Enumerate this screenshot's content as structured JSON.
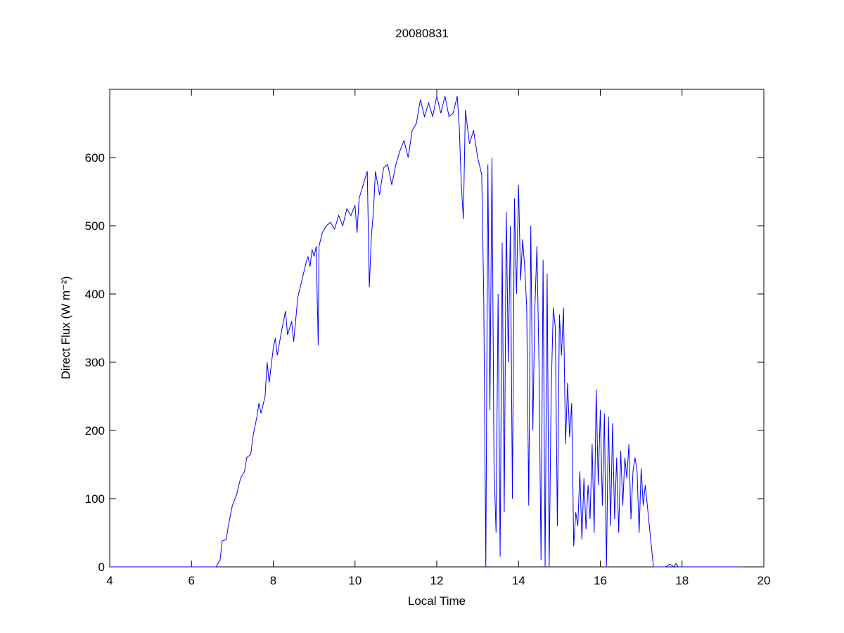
{
  "chart_data": {
    "type": "line",
    "title": "20080831",
    "x_label": "Local Time",
    "y_label": "Direct Flux (W m⁻²)",
    "xlim": [
      4,
      20
    ],
    "xticks": [
      4,
      6,
      8,
      10,
      12,
      14,
      16,
      18,
      20
    ],
    "ylim": [
      0,
      700
    ],
    "yticks": [
      0,
      100,
      200,
      300,
      400,
      500,
      600
    ],
    "grid": false,
    "x": [
      4.0,
      5.5,
      6.6,
      6.65,
      6.7,
      6.75,
      6.85,
      6.9,
      7.0,
      7.1,
      7.2,
      7.3,
      7.35,
      7.45,
      7.5,
      7.6,
      7.65,
      7.7,
      7.8,
      7.85,
      7.9,
      8.0,
      8.05,
      8.1,
      8.2,
      8.3,
      8.35,
      8.45,
      8.5,
      8.6,
      8.7,
      8.8,
      8.85,
      8.9,
      8.95,
      9.0,
      9.05,
      9.1,
      9.12,
      9.2,
      9.3,
      9.4,
      9.5,
      9.6,
      9.7,
      9.8,
      9.9,
      10.0,
      10.05,
      10.1,
      10.2,
      10.3,
      10.35,
      10.4,
      10.45,
      10.5,
      10.6,
      10.7,
      10.8,
      10.9,
      11.0,
      11.1,
      11.2,
      11.3,
      11.4,
      11.5,
      11.6,
      11.7,
      11.8,
      11.9,
      12.0,
      12.1,
      12.2,
      12.3,
      12.4,
      12.5,
      12.55,
      12.6,
      12.65,
      12.7,
      12.8,
      12.9,
      13.0,
      13.1,
      13.15,
      13.2,
      13.25,
      13.3,
      13.35,
      13.4,
      13.45,
      13.5,
      13.55,
      13.6,
      13.65,
      13.7,
      13.75,
      13.8,
      13.85,
      13.9,
      13.95,
      14.0,
      14.05,
      14.1,
      14.15,
      14.2,
      14.25,
      14.3,
      14.35,
      14.4,
      14.45,
      14.5,
      14.55,
      14.6,
      14.65,
      14.7,
      14.75,
      14.8,
      14.85,
      14.9,
      14.95,
      15.0,
      15.05,
      15.1,
      15.15,
      15.2,
      15.25,
      15.3,
      15.35,
      15.4,
      15.45,
      15.5,
      15.55,
      15.6,
      15.65,
      15.7,
      15.75,
      15.8,
      15.85,
      15.9,
      15.95,
      16.0,
      16.05,
      16.1,
      16.15,
      16.2,
      16.25,
      16.3,
      16.35,
      16.4,
      16.45,
      16.5,
      16.55,
      16.6,
      16.65,
      16.7,
      16.75,
      16.8,
      16.85,
      16.9,
      16.95,
      17.0,
      17.05,
      17.1,
      17.2,
      17.3,
      17.6,
      17.7,
      17.8,
      17.85,
      17.9,
      19.5
    ],
    "series": [
      {
        "color": "#0000ff",
        "values": [
          0,
          0,
          0,
          5,
          10,
          38,
          40,
          60,
          90,
          105,
          130,
          140,
          160,
          165,
          190,
          220,
          240,
          225,
          250,
          300,
          270,
          320,
          335,
          310,
          345,
          375,
          340,
          360,
          330,
          395,
          420,
          445,
          455,
          440,
          465,
          455,
          470,
          325,
          470,
          490,
          500,
          505,
          495,
          515,
          500,
          525,
          515,
          530,
          490,
          540,
          560,
          580,
          410,
          485,
          520,
          580,
          545,
          585,
          590,
          560,
          590,
          610,
          625,
          600,
          640,
          650,
          685,
          660,
          680,
          660,
          690,
          665,
          690,
          660,
          665,
          690,
          645,
          560,
          510,
          670,
          620,
          640,
          600,
          575,
          390,
          0,
          590,
          230,
          600,
          150,
          50,
          400,
          15,
          475,
          80,
          520,
          300,
          500,
          100,
          540,
          400,
          560,
          420,
          480,
          440,
          380,
          90,
          500,
          200,
          380,
          470,
          300,
          10,
          450,
          0,
          430,
          0,
          260,
          380,
          350,
          60,
          370,
          310,
          380,
          180,
          270,
          190,
          240,
          30,
          80,
          60,
          140,
          40,
          130,
          55,
          120,
          70,
          180,
          50,
          260,
          120,
          230,
          90,
          225,
          0,
          220,
          60,
          210,
          70,
          160,
          50,
          170,
          90,
          160,
          130,
          180,
          70,
          140,
          160,
          140,
          50,
          145,
          90,
          120,
          60,
          0,
          0,
          4,
          0,
          5,
          0,
          0
        ]
      }
    ]
  }
}
